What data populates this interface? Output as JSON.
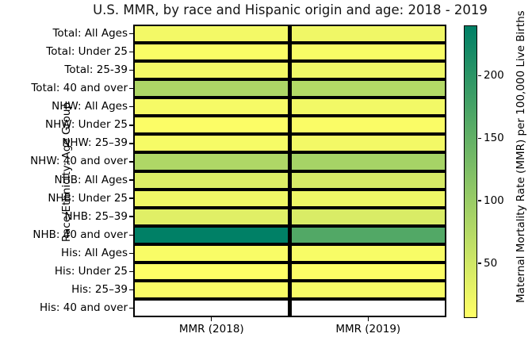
{
  "figure": {
    "title": "U.S. MMR, by race and Hispanic origin and age: 2018 - 2019"
  },
  "chart_data": {
    "type": "heatmap",
    "title": "U.S. MMR, by race and Hispanic origin and age: 2018 - 2019",
    "xlabel": "",
    "ylabel": "Race/Ethnicity: Age Group",
    "columns": [
      "MMR (2018)",
      "MMR (2019)"
    ],
    "rows": [
      "Total: All Ages",
      "Total: Under 25",
      "Total: 25-39",
      "Total: 40 and over",
      "NHW: All Ages",
      "NHW: Under 25",
      "NHW: 25–39",
      "NHW: 40 and over",
      "NHB: All Ages",
      "NHB: Under 25",
      "NHB: 25–39",
      "NHB: 40 and over",
      "His: All Ages",
      "His: Under 25",
      "His: 25–39",
      "His: 40 and over"
    ],
    "values": [
      [
        17.4,
        20.1
      ],
      [
        10.6,
        12.6
      ],
      [
        16.6,
        19.9
      ],
      [
        81.9,
        75.5
      ],
      [
        14.9,
        17.9
      ],
      [
        9.3,
        11.2
      ],
      [
        14.4,
        17.0
      ],
      [
        79.6,
        87.7
      ],
      [
        37.3,
        44.0
      ],
      [
        18.6,
        21.3
      ],
      [
        35.0,
        41.0
      ],
      [
        240.2,
        165.3
      ],
      [
        11.8,
        12.6
      ],
      [
        6.2,
        9.0
      ],
      [
        11.0,
        12.2
      ],
      [
        null,
        null
      ]
    ],
    "colormap": "summer_r",
    "color_scale": {
      "vmin": 6.2,
      "vmax": 240.2,
      "min_color": "#ffff66",
      "max_color": "#007f66"
    },
    "missing_color": "#ffffff",
    "grid_line_color": "#000000",
    "legend_position": "right",
    "colorbar": {
      "label": "Maternal Mortality Rate (MMR) per 100,000 Live Births",
      "ticks": [
        50,
        100,
        150,
        200
      ]
    }
  }
}
